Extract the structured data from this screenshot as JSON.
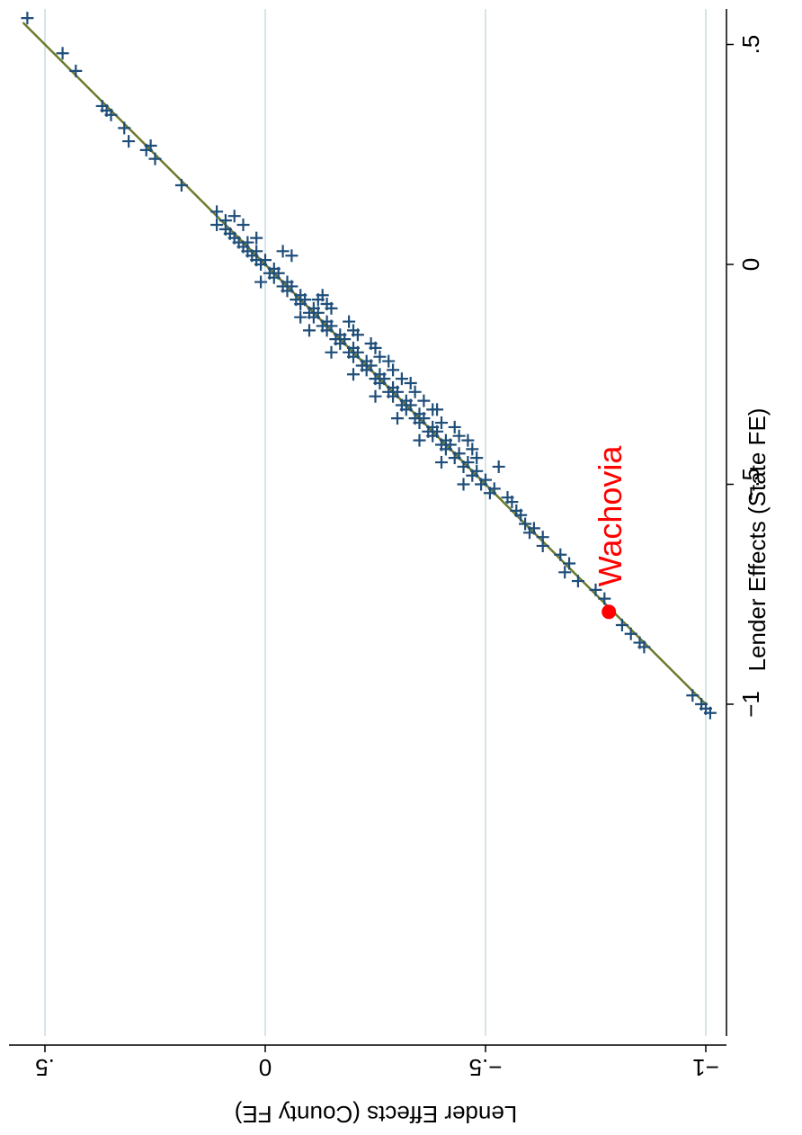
{
  "chart_data": {
    "type": "scatter",
    "orientation": "rotated-90",
    "xlabel": "Lender Effects (State FE)",
    "ylabel": "Lender Effects (County FE)",
    "xlim": [
      -1.02,
      0.57
    ],
    "ylim": [
      -1.02,
      0.57
    ],
    "xticks": [
      {
        "value": -1,
        "label": "−1"
      },
      {
        "value": -0.5,
        "label": "−.5"
      },
      {
        "value": 0,
        "label": "0"
      },
      {
        "value": 0.5,
        "label": ".5"
      }
    ],
    "yticks": [
      {
        "value": -1,
        "label": "−1"
      },
      {
        "value": -0.5,
        "label": "−.5"
      },
      {
        "value": 0,
        "label": "0"
      },
      {
        "value": 0.5,
        "label": ".5"
      }
    ],
    "grid": "horizontal",
    "fit_line": {
      "x": [
        -1.0,
        0.55
      ],
      "y": [
        -1.0,
        0.55
      ],
      "color": "#6b7a2a"
    },
    "marker_color": "#1f4e79",
    "highlight": {
      "label": "Wachovia",
      "x": -0.79,
      "y": -0.78,
      "color": "#ff0000"
    },
    "series": [
      {
        "marker": "plus",
        "points": [
          [
            0.56,
            0.54
          ],
          [
            0.48,
            0.46
          ],
          [
            0.44,
            0.43
          ],
          [
            0.36,
            0.37
          ],
          [
            0.35,
            0.36
          ],
          [
            0.34,
            0.35
          ],
          [
            0.31,
            0.32
          ],
          [
            0.28,
            0.31
          ],
          [
            0.26,
            0.27
          ],
          [
            0.27,
            0.26
          ],
          [
            0.24,
            0.25
          ],
          [
            0.18,
            0.19
          ],
          [
            0.12,
            0.11
          ],
          [
            0.1,
            0.09
          ],
          [
            0.09,
            0.11
          ],
          [
            0.08,
            0.09
          ],
          [
            0.07,
            0.08
          ],
          [
            0.06,
            0.07
          ],
          [
            0.05,
            0.06
          ],
          [
            0.05,
            0.04
          ],
          [
            0.04,
            0.05
          ],
          [
            0.03,
            0.04
          ],
          [
            0.03,
            0.02
          ],
          [
            0.02,
            0.03
          ],
          [
            0.01,
            0.02
          ],
          [
            0.01,
            0.0
          ],
          [
            0.0,
            0.01
          ],
          [
            -0.01,
            -0.02
          ],
          [
            -0.02,
            -0.01
          ],
          [
            -0.02,
            -0.03
          ],
          [
            -0.03,
            -0.02
          ],
          [
            -0.04,
            -0.05
          ],
          [
            -0.05,
            -0.04
          ],
          [
            -0.05,
            -0.06
          ],
          [
            -0.06,
            -0.05
          ],
          [
            -0.07,
            -0.08
          ],
          [
            -0.08,
            -0.07
          ],
          [
            -0.08,
            -0.09
          ],
          [
            -0.09,
            -0.08
          ],
          [
            -0.1,
            -0.11
          ],
          [
            -0.11,
            -0.1
          ],
          [
            -0.11,
            -0.12
          ],
          [
            -0.12,
            -0.11
          ],
          [
            -0.13,
            -0.14
          ],
          [
            -0.14,
            -0.13
          ],
          [
            -0.14,
            -0.15
          ],
          [
            -0.15,
            -0.14
          ],
          [
            -0.16,
            -0.17
          ],
          [
            -0.17,
            -0.16
          ],
          [
            -0.17,
            -0.18
          ],
          [
            -0.18,
            -0.17
          ],
          [
            -0.19,
            -0.2
          ],
          [
            -0.2,
            -0.19
          ],
          [
            -0.2,
            -0.21
          ],
          [
            -0.21,
            -0.2
          ],
          [
            -0.22,
            -0.23
          ],
          [
            -0.23,
            -0.22
          ],
          [
            -0.23,
            -0.24
          ],
          [
            -0.24,
            -0.23
          ],
          [
            -0.25,
            -0.26
          ],
          [
            -0.26,
            -0.25
          ],
          [
            -0.26,
            -0.27
          ],
          [
            -0.27,
            -0.26
          ],
          [
            -0.28,
            -0.29
          ],
          [
            -0.29,
            -0.28
          ],
          [
            -0.29,
            -0.3
          ],
          [
            -0.3,
            -0.29
          ],
          [
            -0.31,
            -0.32
          ],
          [
            -0.32,
            -0.31
          ],
          [
            -0.32,
            -0.33
          ],
          [
            -0.33,
            -0.32
          ],
          [
            -0.34,
            -0.35
          ],
          [
            -0.35,
            -0.34
          ],
          [
            -0.35,
            -0.36
          ],
          [
            -0.36,
            -0.35
          ],
          [
            -0.37,
            -0.38
          ],
          [
            -0.38,
            -0.37
          ],
          [
            -0.38,
            -0.39
          ],
          [
            -0.39,
            -0.38
          ],
          [
            -0.4,
            -0.41
          ],
          [
            -0.41,
            -0.4
          ],
          [
            -0.41,
            -0.42
          ],
          [
            -0.42,
            -0.41
          ],
          [
            -0.43,
            -0.44
          ],
          [
            -0.44,
            -0.43
          ],
          [
            -0.45,
            -0.46
          ],
          [
            -0.46,
            -0.45
          ],
          [
            -0.47,
            -0.48
          ],
          [
            -0.48,
            -0.47
          ],
          [
            -0.49,
            -0.5
          ],
          [
            -0.5,
            -0.49
          ],
          [
            -0.51,
            -0.52
          ],
          [
            -0.52,
            -0.51
          ],
          [
            -0.08,
            -0.12
          ],
          [
            -0.12,
            -0.08
          ],
          [
            -0.15,
            -0.1
          ],
          [
            -0.2,
            -0.15
          ],
          [
            -0.18,
            -0.24
          ],
          [
            -0.25,
            -0.2
          ],
          [
            -0.22,
            -0.28
          ],
          [
            -0.3,
            -0.25
          ],
          [
            -0.27,
            -0.33
          ],
          [
            -0.35,
            -0.3
          ],
          [
            -0.33,
            -0.38
          ],
          [
            -0.4,
            -0.35
          ],
          [
            -0.37,
            -0.43
          ],
          [
            -0.45,
            -0.4
          ],
          [
            -0.42,
            -0.47
          ],
          [
            -0.5,
            -0.45
          ],
          [
            -0.46,
            -0.53
          ],
          [
            0.02,
            -0.06
          ],
          [
            0.03,
            -0.04
          ],
          [
            -0.04,
            0.01
          ],
          [
            0.06,
            0.02
          ],
          [
            0.09,
            0.05
          ],
          [
            0.11,
            0.07
          ],
          [
            -0.1,
            -0.15
          ],
          [
            -0.16,
            -0.21
          ],
          [
            -0.24,
            -0.29
          ],
          [
            -0.31,
            -0.36
          ],
          [
            -0.39,
            -0.44
          ],
          [
            -0.44,
            -0.48
          ],
          [
            -0.07,
            -0.13
          ],
          [
            -0.13,
            -0.19
          ],
          [
            -0.19,
            -0.25
          ],
          [
            -0.26,
            -0.31
          ],
          [
            -0.33,
            -0.39
          ],
          [
            -0.4,
            -0.46
          ],
          [
            -0.36,
            -0.4
          ],
          [
            -0.29,
            -0.34
          ],
          [
            -0.21,
            -0.26
          ],
          [
            -0.15,
            -0.2
          ],
          [
            -0.09,
            -0.14
          ],
          [
            -0.53,
            -0.55
          ],
          [
            -0.54,
            -0.56
          ],
          [
            -0.56,
            -0.57
          ],
          [
            -0.57,
            -0.58
          ],
          [
            -0.59,
            -0.59
          ],
          [
            -0.6,
            -0.61
          ],
          [
            -0.61,
            -0.6
          ],
          [
            -0.62,
            -0.63
          ],
          [
            -0.64,
            -0.63
          ],
          [
            -0.66,
            -0.67
          ],
          [
            -0.68,
            -0.69
          ],
          [
            -0.7,
            -0.68
          ],
          [
            -0.72,
            -0.71
          ],
          [
            -0.74,
            -0.75
          ],
          [
            -0.76,
            -0.77
          ],
          [
            -0.82,
            -0.81
          ],
          [
            -0.84,
            -0.83
          ],
          [
            -0.86,
            -0.85
          ],
          [
            -0.87,
            -0.86
          ],
          [
            -0.98,
            -0.97
          ],
          [
            -1.0,
            -0.99
          ],
          [
            -1.01,
            -1.0
          ],
          [
            -1.02,
            -1.01
          ]
        ]
      }
    ]
  }
}
